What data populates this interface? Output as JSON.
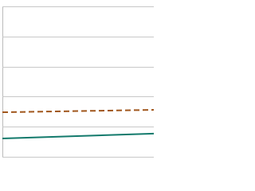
{
  "chart_data": {
    "type": "line",
    "x": [
      0,
      1
    ],
    "xlim": [
      0,
      1
    ],
    "ylim": [
      0,
      5
    ],
    "yticks": [
      0,
      1,
      2,
      3,
      4,
      5
    ],
    "grid": true,
    "series": [
      {
        "color": "#a0561c",
        "dash": true,
        "values": [
          1.48,
          1.56
        ]
      },
      {
        "color": "#137a6c",
        "dash": false,
        "values": [
          0.61,
          0.77
        ]
      }
    ]
  }
}
